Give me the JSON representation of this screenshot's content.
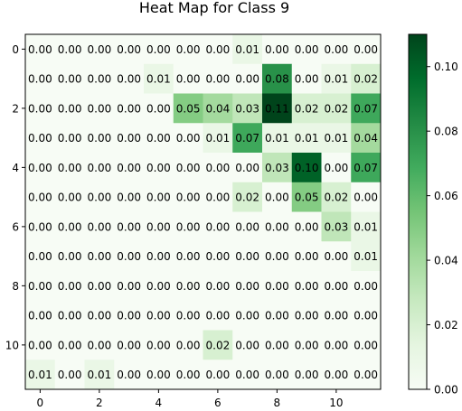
{
  "chart_data": {
    "type": "heatmap",
    "title": "Heat Map for Class 9",
    "xlabel": "",
    "ylabel": "",
    "x_ticks": [
      "0",
      "2",
      "4",
      "6",
      "8",
      "10"
    ],
    "y_ticks": [
      "0",
      "2",
      "4",
      "6",
      "8",
      "10"
    ],
    "colorbar_ticks": [
      "0.00",
      "0.02",
      "0.04",
      "0.06",
      "0.08",
      "0.10"
    ],
    "colorbar_range": [
      0,
      0.11
    ],
    "colormap": "Greens",
    "matrix": [
      [
        0.0,
        0.0,
        0.0,
        0.0,
        0.0,
        0.0,
        0.0,
        0.01,
        0.0,
        0.0,
        0.0,
        0.0
      ],
      [
        0.0,
        0.0,
        0.0,
        0.0,
        0.01,
        0.0,
        0.0,
        0.0,
        0.08,
        0.0,
        0.01,
        0.02
      ],
      [
        0.0,
        0.0,
        0.0,
        0.0,
        0.0,
        0.05,
        0.04,
        0.03,
        0.11,
        0.02,
        0.02,
        0.07
      ],
      [
        0.0,
        0.0,
        0.0,
        0.0,
        0.0,
        0.0,
        0.01,
        0.07,
        0.01,
        0.01,
        0.01,
        0.04
      ],
      [
        0.0,
        0.0,
        0.0,
        0.0,
        0.0,
        0.0,
        0.0,
        0.0,
        0.03,
        0.1,
        0.0,
        0.07
      ],
      [
        0.0,
        0.0,
        0.0,
        0.0,
        0.0,
        0.0,
        0.0,
        0.02,
        0.0,
        0.05,
        0.02,
        0.0
      ],
      [
        0.0,
        0.0,
        0.0,
        0.0,
        0.0,
        0.0,
        0.0,
        0.0,
        0.0,
        0.0,
        0.03,
        0.01
      ],
      [
        0.0,
        0.0,
        0.0,
        0.0,
        0.0,
        0.0,
        0.0,
        0.0,
        0.0,
        0.0,
        0.0,
        0.01
      ],
      [
        0.0,
        0.0,
        0.0,
        0.0,
        0.0,
        0.0,
        0.0,
        0.0,
        0.0,
        0.0,
        0.0,
        0.0
      ],
      [
        0.0,
        0.0,
        0.0,
        0.0,
        0.0,
        0.0,
        0.0,
        0.0,
        0.0,
        0.0,
        0.0,
        0.0
      ],
      [
        0.0,
        0.0,
        0.0,
        0.0,
        0.0,
        0.0,
        0.02,
        0.0,
        0.0,
        0.0,
        0.0,
        0.0
      ],
      [
        0.01,
        0.0,
        0.01,
        0.0,
        0.0,
        0.0,
        0.0,
        0.0,
        0.0,
        0.0,
        0.0,
        0.0
      ]
    ],
    "grid": false,
    "legend": "none"
  }
}
